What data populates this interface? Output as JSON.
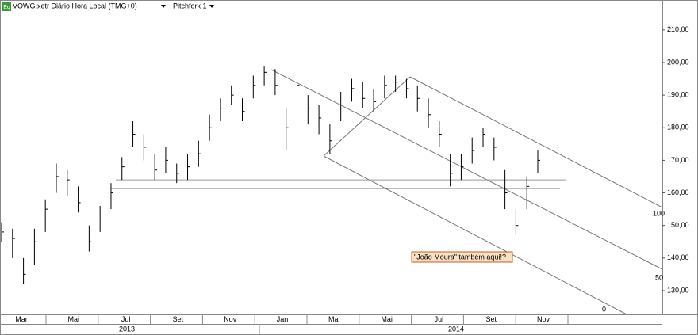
{
  "chart_data": {
    "type": "ohlc",
    "icon_label": "Eq",
    "title": "VOWG:xetr Diário Hora Local (TMG+0)",
    "study": "Pitchfork 1",
    "annotation": "\"João Moura\" também aqui!?",
    "pitchfork_labels": [
      "100",
      "50",
      "0"
    ],
    "x_labels": [
      "Mar",
      "Mai",
      "Jul",
      "Set",
      "Nov",
      "Jan",
      "Mar",
      "Mai",
      "Jul",
      "Set",
      "Nov"
    ],
    "year_labels": [
      "2013",
      "2014"
    ],
    "ylim": [
      122.7,
      219.2
    ],
    "yticks": [
      {
        "value": 130,
        "label": "130,00"
      },
      {
        "value": 140,
        "label": "140,00"
      },
      {
        "value": 150,
        "label": "150,00"
      },
      {
        "value": 160,
        "label": "160,00"
      },
      {
        "value": 170,
        "label": "170,00"
      },
      {
        "value": 180,
        "label": "180,00"
      },
      {
        "value": 190,
        "label": "190,00"
      },
      {
        "value": 200,
        "label": "200,00"
      },
      {
        "value": 210,
        "label": "210,00"
      }
    ],
    "horizontal_lines": [
      164,
      161.4
    ],
    "color": "#000000",
    "close": [
      148,
      146,
      135,
      145,
      155,
      165,
      164,
      157,
      145,
      152,
      160,
      168,
      178,
      174,
      167,
      170,
      166,
      168,
      172,
      180,
      186,
      190,
      185,
      193,
      197,
      193,
      180,
      193,
      186,
      183,
      176,
      186,
      192,
      189,
      188,
      193,
      194,
      192,
      189,
      184,
      178,
      166,
      168,
      173,
      178,
      174,
      160,
      150,
      162,
      170
    ],
    "high": [
      151,
      149,
      140,
      149,
      158,
      169,
      167,
      162,
      150,
      156,
      163,
      171,
      182,
      178,
      172,
      174,
      169,
      172,
      176,
      184,
      189,
      193,
      189,
      196,
      199,
      198,
      186,
      196,
      190,
      187,
      181,
      191,
      195,
      194,
      192,
      196,
      196,
      195,
      193,
      189,
      182,
      172,
      172,
      177,
      180,
      177,
      167,
      155,
      165,
      173
    ],
    "low": [
      145,
      140,
      132,
      138,
      148,
      160,
      159,
      154,
      142,
      148,
      155,
      164,
      174,
      170,
      164,
      166,
      163,
      164,
      168,
      176,
      182,
      187,
      182,
      189,
      193,
      190,
      173,
      182,
      181,
      178,
      172,
      182,
      188,
      186,
      185,
      189,
      191,
      189,
      185,
      180,
      174,
      162,
      164,
      169,
      174,
      170,
      155,
      147,
      155,
      166
    ]
  }
}
